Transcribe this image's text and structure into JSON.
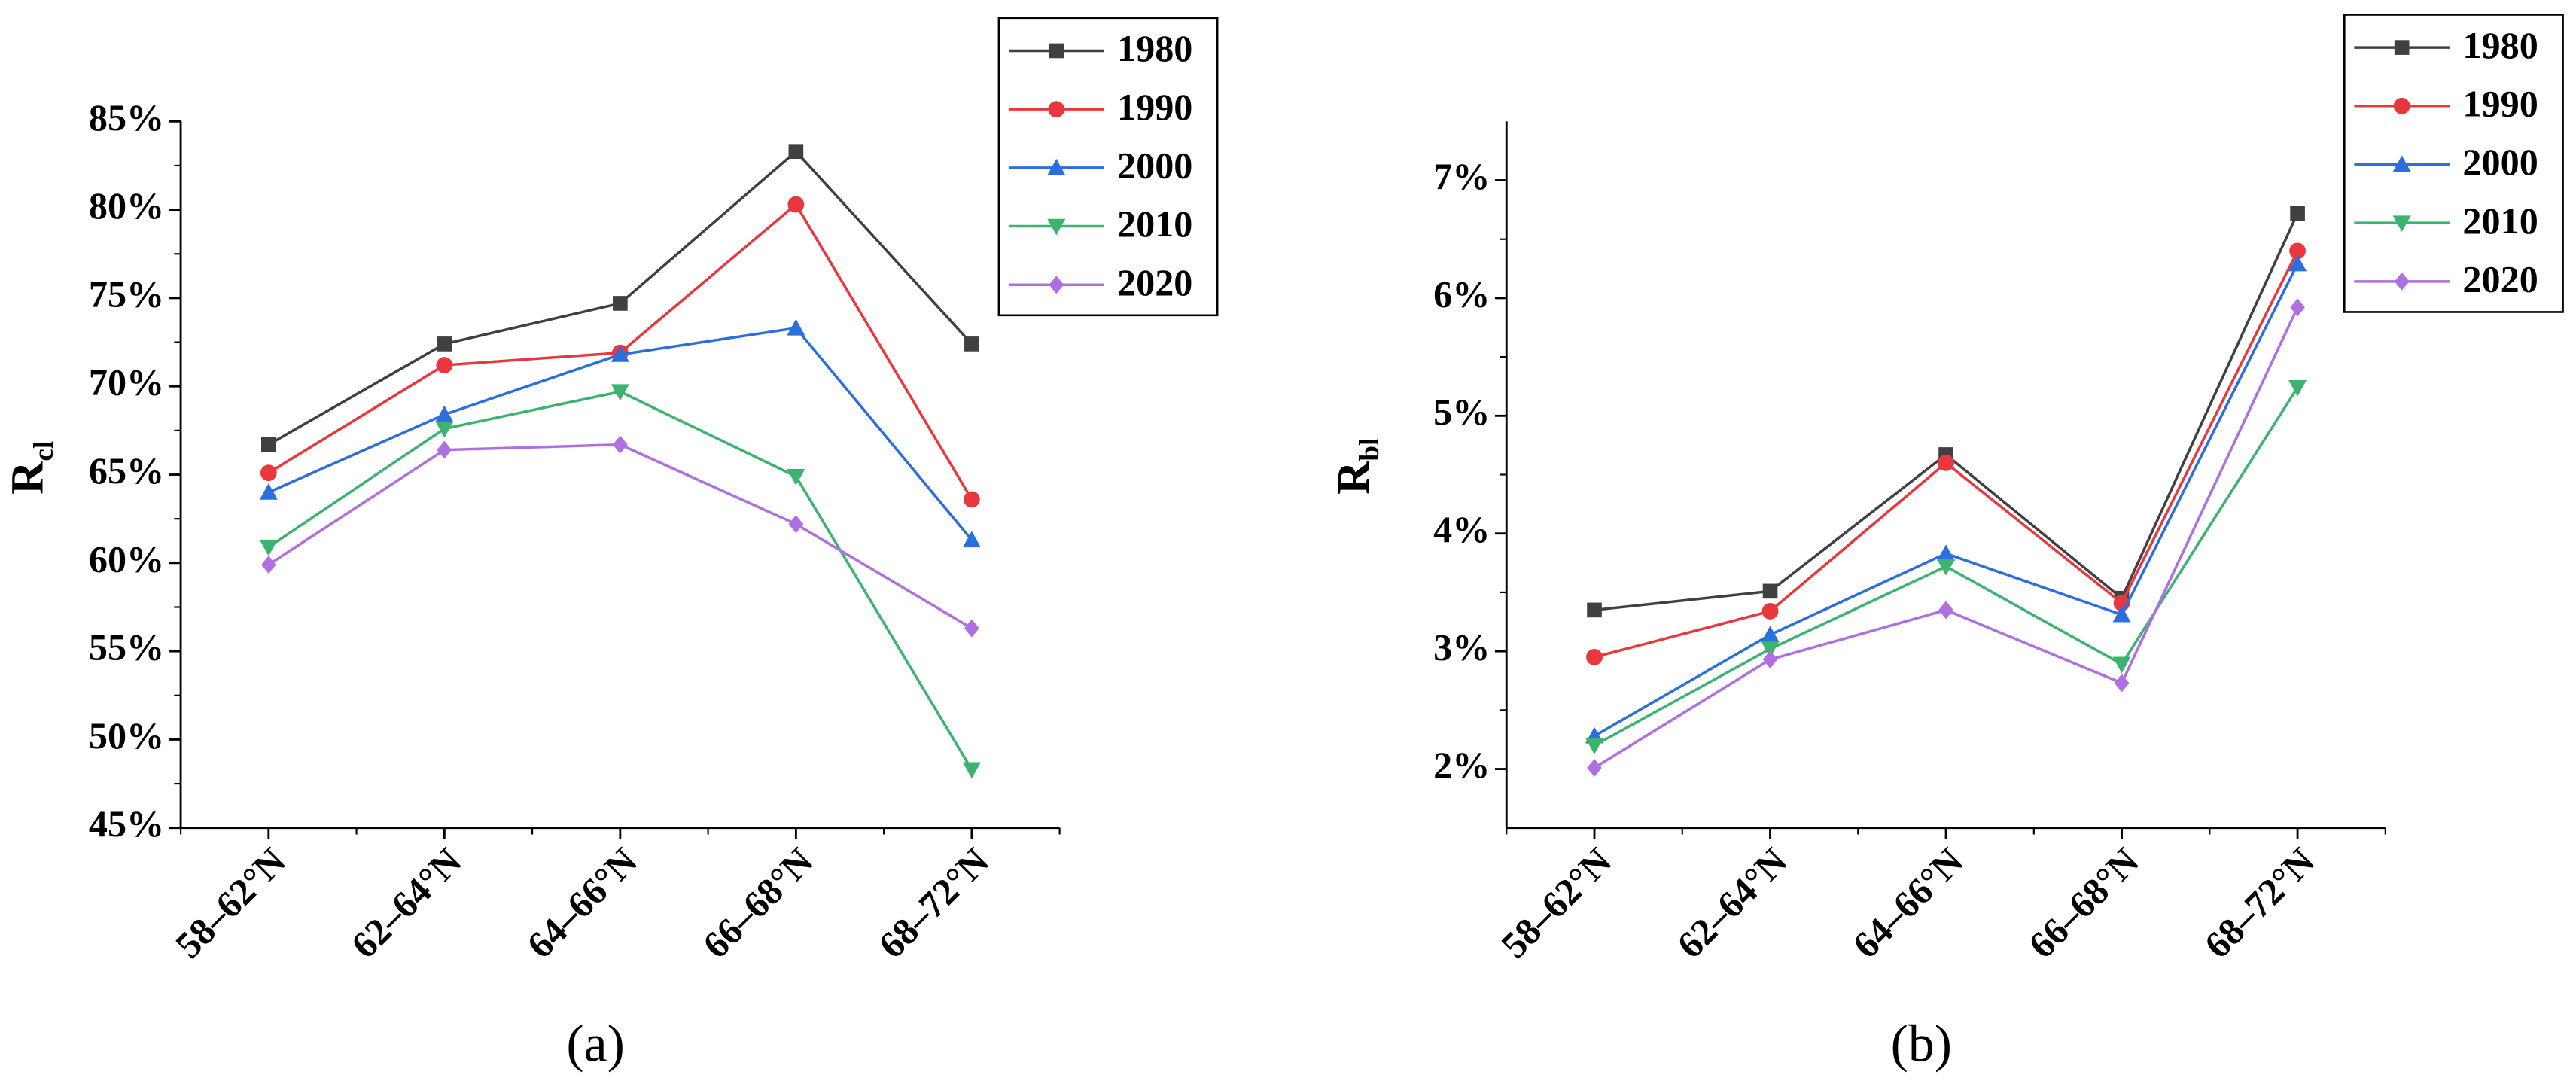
{
  "chart_data": [
    {
      "type": "line",
      "y_label": "R",
      "y_label_sub": "cl",
      "panel_label": "(a)",
      "categories": [
        "58–62°N",
        "62–64°N",
        "64–66°N",
        "66–68°N",
        "68–72°N"
      ],
      "ylim": [
        45,
        85
      ],
      "yticks": [
        {
          "value": 45,
          "label": "45%"
        },
        {
          "value": 50,
          "label": "50%"
        },
        {
          "value": 55,
          "label": "55%"
        },
        {
          "value": 60,
          "label": "60%"
        },
        {
          "value": 65,
          "label": "65%"
        },
        {
          "value": 70,
          "label": "70%"
        },
        {
          "value": 75,
          "label": "75%"
        },
        {
          "value": 80,
          "label": "80%"
        },
        {
          "value": 85,
          "label": "85%"
        }
      ],
      "legend": "upper right",
      "series": [
        {
          "name": "1980",
          "color": "#404040",
          "marker": "square",
          "values": [
            66.7,
            72.4,
            74.7,
            83.3,
            72.4
          ]
        },
        {
          "name": "1990",
          "color": "#e8383d",
          "marker": "circle",
          "values": [
            65.1,
            71.2,
            71.9,
            80.3,
            63.6
          ]
        },
        {
          "name": "2000",
          "color": "#2a6fdb",
          "marker": "triangle-up",
          "values": [
            64.0,
            68.4,
            71.8,
            73.3,
            61.3
          ]
        },
        {
          "name": "2010",
          "color": "#3cb371",
          "marker": "triangle-down",
          "values": [
            60.9,
            67.6,
            69.7,
            64.9,
            48.3
          ]
        },
        {
          "name": "2020",
          "color": "#b06fe0",
          "marker": "diamond",
          "values": [
            59.9,
            66.4,
            66.7,
            62.2,
            56.3
          ]
        }
      ]
    },
    {
      "type": "line",
      "y_label": "R",
      "y_label_sub": "bl",
      "panel_label": "(b)",
      "categories": [
        "58–62°N",
        "62–64°N",
        "64–66°N",
        "66–68°N",
        "68–72°N"
      ],
      "ylim": [
        1.5,
        7.5
      ],
      "yticks": [
        {
          "value": 2,
          "label": "2%"
        },
        {
          "value": 3,
          "label": "3%"
        },
        {
          "value": 4,
          "label": "4%"
        },
        {
          "value": 5,
          "label": "5%"
        },
        {
          "value": 6,
          "label": "6%"
        },
        {
          "value": 7,
          "label": "7%"
        }
      ],
      "legend": "upper right",
      "series": [
        {
          "name": "1980",
          "color": "#404040",
          "marker": "square",
          "values": [
            3.35,
            3.51,
            4.67,
            3.45,
            6.72
          ]
        },
        {
          "name": "1990",
          "color": "#e8383d",
          "marker": "circle",
          "values": [
            2.95,
            3.34,
            4.6,
            3.41,
            6.4
          ]
        },
        {
          "name": "2000",
          "color": "#2a6fdb",
          "marker": "triangle-up",
          "values": [
            2.28,
            3.14,
            3.83,
            3.31,
            6.29
          ]
        },
        {
          "name": "2010",
          "color": "#3cb371",
          "marker": "triangle-down",
          "values": [
            2.2,
            3.02,
            3.72,
            2.89,
            5.24
          ]
        },
        {
          "name": "2020",
          "color": "#b06fe0",
          "marker": "diamond",
          "values": [
            2.01,
            2.93,
            3.35,
            2.73,
            5.92
          ]
        }
      ]
    }
  ]
}
